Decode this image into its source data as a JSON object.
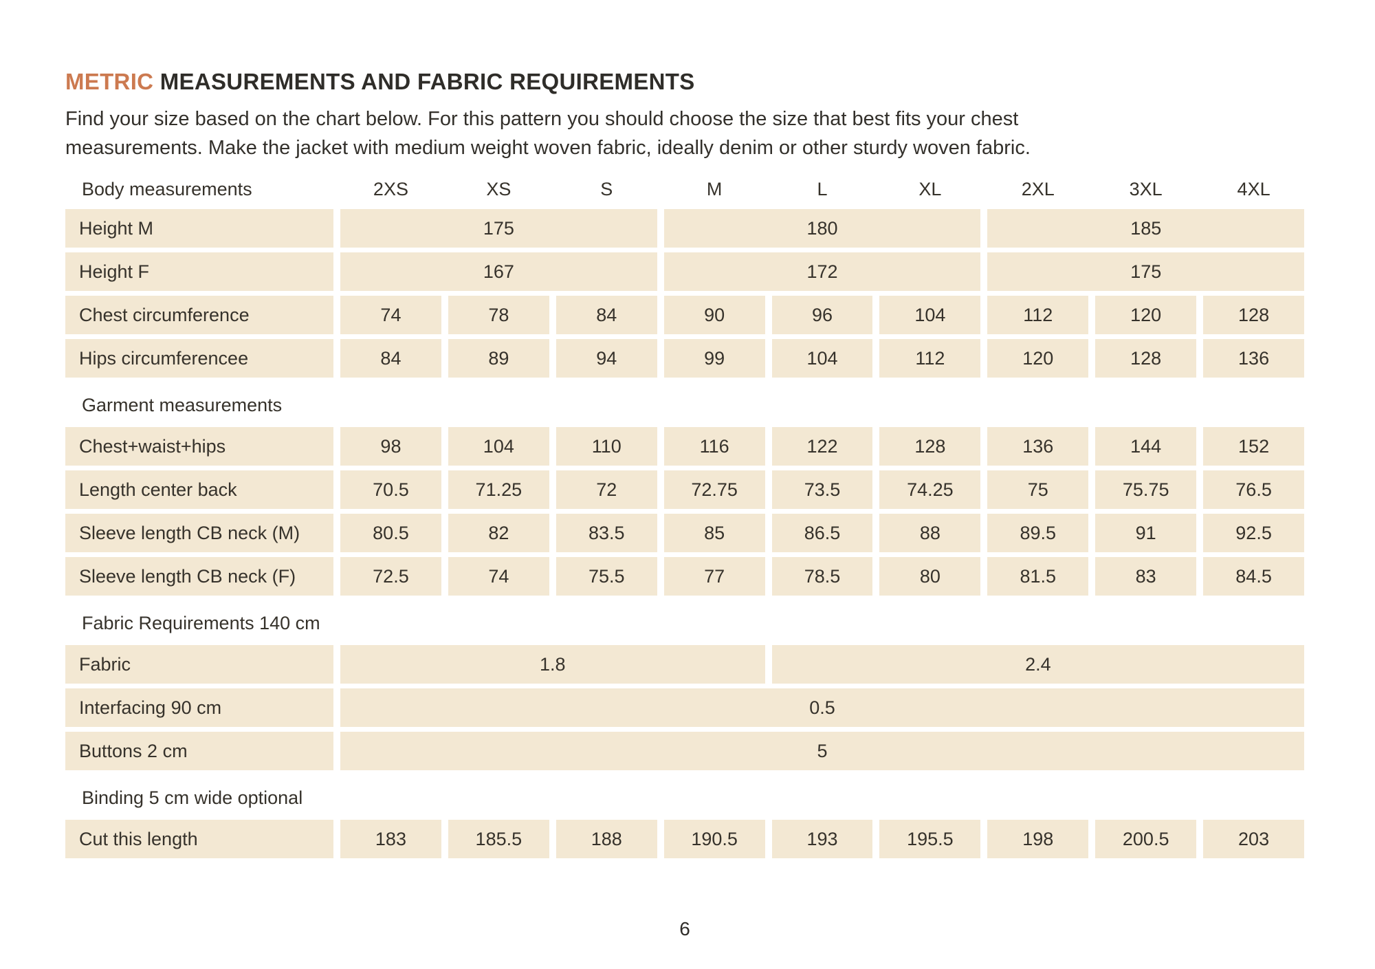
{
  "colors": {
    "accent": "#cc7a50",
    "cell_background": "#f3e8d3",
    "text": "#33302b",
    "page_background": "#ffffff"
  },
  "title": {
    "highlight": "METRIC",
    "rest": " MEASUREMENTS AND FABRIC REQUIREMENTS"
  },
  "intro": "Find your size based on the chart below. For this pattern you should choose the size that best fits your chest measurements. Make the jacket with medium weight woven fabric, ideally denim or other sturdy woven fabric.",
  "page_number": "6",
  "table": {
    "header_label": "Body measurements",
    "size_columns": [
      "2XS",
      "XS",
      "S",
      "M",
      "L",
      "XL",
      "2XL",
      "3XL",
      "4XL"
    ],
    "rows": [
      {
        "type": "data",
        "label": "Height M",
        "cells": [
          {
            "value": "175",
            "span": 3
          },
          {
            "value": "180",
            "span": 3
          },
          {
            "value": "185",
            "span": 3
          }
        ]
      },
      {
        "type": "data",
        "label": "Height F",
        "cells": [
          {
            "value": "167",
            "span": 3
          },
          {
            "value": "172",
            "span": 3
          },
          {
            "value": "175",
            "span": 3
          }
        ]
      },
      {
        "type": "data",
        "label": "Chest circumference",
        "cells": [
          {
            "value": "74",
            "span": 1
          },
          {
            "value": "78",
            "span": 1
          },
          {
            "value": "84",
            "span": 1
          },
          {
            "value": "90",
            "span": 1
          },
          {
            "value": "96",
            "span": 1
          },
          {
            "value": "104",
            "span": 1
          },
          {
            "value": "112",
            "span": 1
          },
          {
            "value": "120",
            "span": 1
          },
          {
            "value": "128",
            "span": 1
          }
        ]
      },
      {
        "type": "data",
        "label": "Hips circumferencee",
        "cells": [
          {
            "value": "84",
            "span": 1
          },
          {
            "value": "89",
            "span": 1
          },
          {
            "value": "94",
            "span": 1
          },
          {
            "value": "99",
            "span": 1
          },
          {
            "value": "104",
            "span": 1
          },
          {
            "value": "112",
            "span": 1
          },
          {
            "value": "120",
            "span": 1
          },
          {
            "value": "128",
            "span": 1
          },
          {
            "value": "136",
            "span": 1
          }
        ]
      },
      {
        "type": "section",
        "label": "Garment measurements"
      },
      {
        "type": "data",
        "label": "Chest+waist+hips",
        "cells": [
          {
            "value": "98",
            "span": 1
          },
          {
            "value": "104",
            "span": 1
          },
          {
            "value": "110",
            "span": 1
          },
          {
            "value": "116",
            "span": 1
          },
          {
            "value": "122",
            "span": 1
          },
          {
            "value": "128",
            "span": 1
          },
          {
            "value": "136",
            "span": 1
          },
          {
            "value": "144",
            "span": 1
          },
          {
            "value": "152",
            "span": 1
          }
        ]
      },
      {
        "type": "data",
        "label": "Length center back",
        "cells": [
          {
            "value": "70.5",
            "span": 1
          },
          {
            "value": "71.25",
            "span": 1
          },
          {
            "value": "72",
            "span": 1
          },
          {
            "value": "72.75",
            "span": 1
          },
          {
            "value": "73.5",
            "span": 1
          },
          {
            "value": "74.25",
            "span": 1
          },
          {
            "value": "75",
            "span": 1
          },
          {
            "value": "75.75",
            "span": 1
          },
          {
            "value": "76.5",
            "span": 1
          }
        ]
      },
      {
        "type": "data",
        "label": "Sleeve length CB neck (M)",
        "cells": [
          {
            "value": "80.5",
            "span": 1
          },
          {
            "value": "82",
            "span": 1
          },
          {
            "value": "83.5",
            "span": 1
          },
          {
            "value": "85",
            "span": 1
          },
          {
            "value": "86.5",
            "span": 1
          },
          {
            "value": "88",
            "span": 1
          },
          {
            "value": "89.5",
            "span": 1
          },
          {
            "value": "91",
            "span": 1
          },
          {
            "value": "92.5",
            "span": 1
          }
        ]
      },
      {
        "type": "data",
        "label": "Sleeve length CB neck (F)",
        "cells": [
          {
            "value": "72.5",
            "span": 1
          },
          {
            "value": "74",
            "span": 1
          },
          {
            "value": "75.5",
            "span": 1
          },
          {
            "value": "77",
            "span": 1
          },
          {
            "value": "78.5",
            "span": 1
          },
          {
            "value": "80",
            "span": 1
          },
          {
            "value": "81.5",
            "span": 1
          },
          {
            "value": "83",
            "span": 1
          },
          {
            "value": "84.5",
            "span": 1
          }
        ]
      },
      {
        "type": "section",
        "label": "Fabric Requirements 140 cm"
      },
      {
        "type": "data",
        "label": "Fabric",
        "cells": [
          {
            "value": "1.8",
            "span": 4
          },
          {
            "value": "2.4",
            "span": 5
          }
        ]
      },
      {
        "type": "data",
        "label": "Interfacing 90 cm",
        "cells": [
          {
            "value": "0.5",
            "span": 9
          }
        ]
      },
      {
        "type": "data",
        "label": "Buttons 2 cm",
        "cells": [
          {
            "value": "5",
            "span": 9
          }
        ]
      },
      {
        "type": "section",
        "label": "Binding 5 cm wide optional"
      },
      {
        "type": "data",
        "label": "Cut this length",
        "cells": [
          {
            "value": "183",
            "span": 1
          },
          {
            "value": "185.5",
            "span": 1
          },
          {
            "value": "188",
            "span": 1
          },
          {
            "value": "190.5",
            "span": 1
          },
          {
            "value": "193",
            "span": 1
          },
          {
            "value": "195.5",
            "span": 1
          },
          {
            "value": "198",
            "span": 1
          },
          {
            "value": "200.5",
            "span": 1
          },
          {
            "value": "203",
            "span": 1
          }
        ]
      }
    ]
  }
}
